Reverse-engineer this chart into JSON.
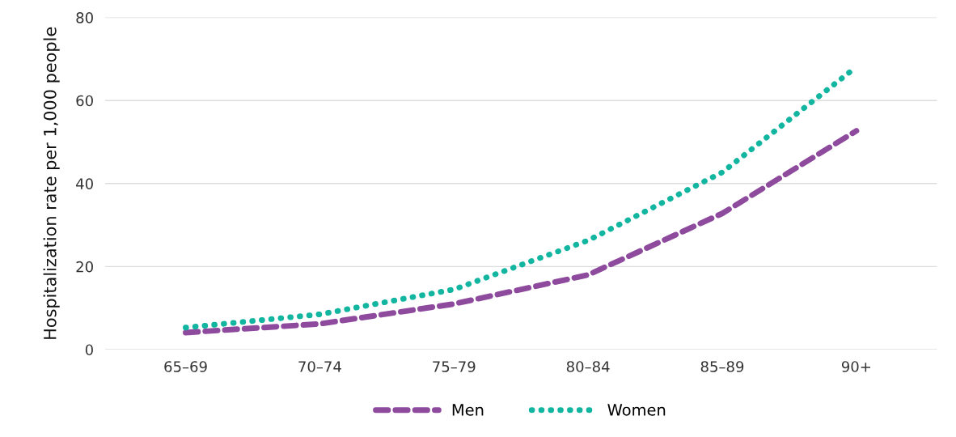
{
  "chart_data": {
    "type": "line",
    "ylabel": "Hospitalization rate per 1,000 people",
    "categories": [
      "65–69",
      "70–74",
      "75–79",
      "80–84",
      "85–89",
      "90+"
    ],
    "series": [
      {
        "name": "Men",
        "color": "#8e4b9e",
        "line_style": "dashed",
        "values": [
          4.1,
          6.2,
          11,
          18,
          32.8,
          52.7
        ]
      },
      {
        "name": "Women",
        "color": "#12b5a0",
        "line_style": "dotted",
        "values": [
          5.3,
          8.5,
          14.5,
          26.3,
          42.7,
          68.1
        ]
      }
    ],
    "ylim": [
      0,
      80
    ],
    "yticks": [
      0,
      20,
      40,
      60,
      80
    ],
    "grid": "y",
    "legend": "bottom"
  }
}
